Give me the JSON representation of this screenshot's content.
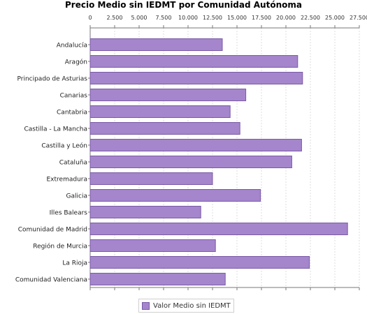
{
  "chart_data": {
    "type": "bar",
    "orientation": "horizontal",
    "title": "Precio Medio sin IEDMT por Comunidad Autónoma",
    "categories": [
      "Andalucía",
      "Aragón",
      "Principado de Asturias",
      "Canarias",
      "Cantabria",
      "Castilla - La Mancha",
      "Castilla y León",
      "Cataluña",
      "Extremadura",
      "Galicia",
      "Illes Balears",
      "Comunidad de Madrid",
      "Región de Murcia",
      "La Rioja",
      "Comunidad Valenciana"
    ],
    "series": [
      {
        "name": "Valor Medio sin IEDMT",
        "values": [
          13500,
          21200,
          21700,
          15900,
          14300,
          15300,
          21600,
          20600,
          12500,
          17400,
          11300,
          26300,
          12800,
          22400,
          13800
        ]
      }
    ],
    "xlim": [
      0,
      27500
    ],
    "ticks": [
      "0",
      "2.500",
      "5.000",
      "7.500",
      "10.000",
      "12.500",
      "15.000",
      "17.500",
      "20.000",
      "22.500",
      "25.000",
      "27.500"
    ],
    "grid": true,
    "legend_position": "bottom",
    "colors": {
      "bar": "#a585cc",
      "bar_stroke": "#7a5aa6",
      "grid": "#dcdcdc",
      "axis": "#777777"
    }
  }
}
